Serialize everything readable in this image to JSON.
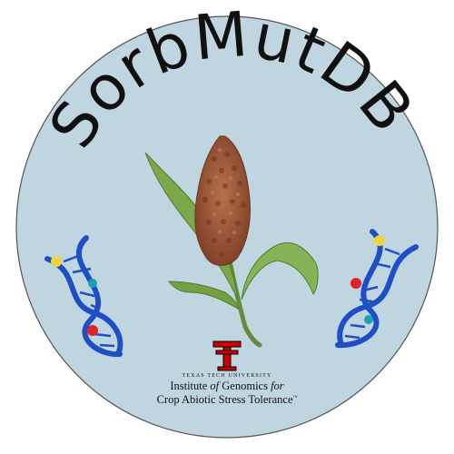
{
  "logo": {
    "title": "SorbMutDB",
    "institution": {
      "university": "TEXAS TECH UNIVERSITY",
      "line1_pre": "Institute ",
      "line1_em": "of",
      "line1_mid": " Genomics ",
      "line1_em2": "for",
      "line2": "Crop Abiotic Stress Tolerance",
      "tm": "™"
    }
  },
  "colors": {
    "circle_fill": "#bfd5e0",
    "circle_stroke": "#555555",
    "title_color": "#111111",
    "dna_blue": "#1e4fc4",
    "dot_yellow": "#f2d43a",
    "dot_red": "#e0222a",
    "dot_teal": "#1aa0b5",
    "seed_head": "#9c5a3a",
    "leaf_green": "#7aa84a",
    "ttu_red": "#cc0000"
  },
  "icons": [
    "sorghum-plant-icon",
    "dna-helix-icon",
    "texas-tech-double-t-logo"
  ]
}
